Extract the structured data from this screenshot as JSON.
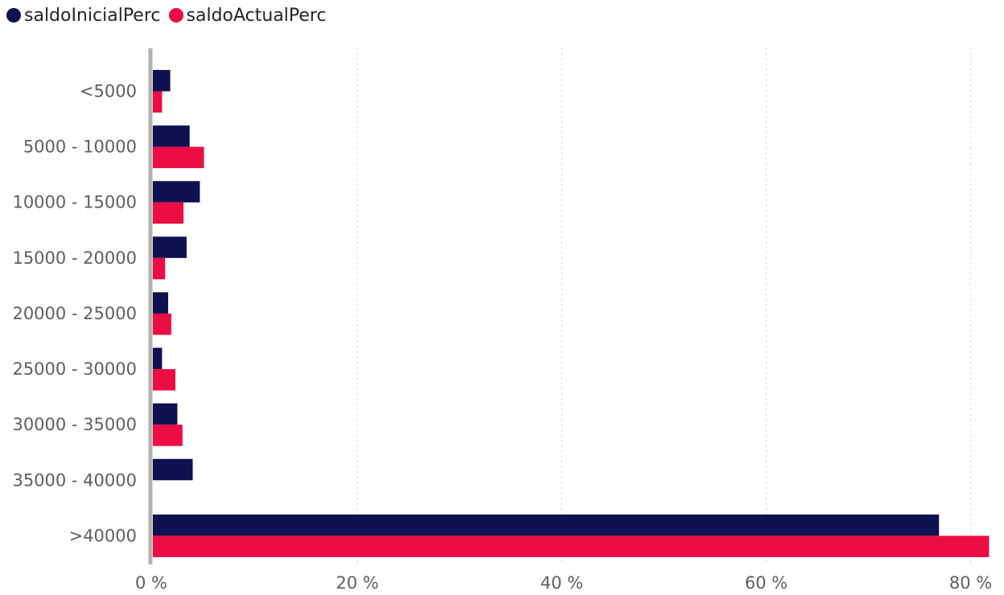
{
  "chart_data": {
    "type": "bar",
    "orientation": "horizontal",
    "categories": [
      "<5000",
      "5000 - 10000",
      "10000 - 15000",
      "15000 - 20000",
      "20000 - 25000",
      "25000 - 30000",
      "30000 - 35000",
      "35000 - 40000",
      ">40000"
    ],
    "series": [
      {
        "name": "saldoInicialPerc",
        "color": "#0f1151",
        "values": [
          1.7,
          3.6,
          4.6,
          3.3,
          1.5,
          0.9,
          2.4,
          3.9,
          76.9
        ]
      },
      {
        "name": "saldoActualPerc",
        "color": "#eb0d44",
        "values": [
          0.9,
          5.0,
          3.0,
          1.2,
          1.8,
          2.2,
          2.9,
          0,
          81.8
        ]
      }
    ],
    "xlim": [
      0,
      82
    ],
    "xticks": [
      0,
      20,
      40,
      60,
      80
    ],
    "xtick_labels": [
      "0 %",
      "20 %",
      "40 %",
      "60 %",
      "80 %"
    ],
    "grid": true,
    "legend_position": "top-left",
    "title": "",
    "xlabel": "",
    "ylabel": ""
  }
}
